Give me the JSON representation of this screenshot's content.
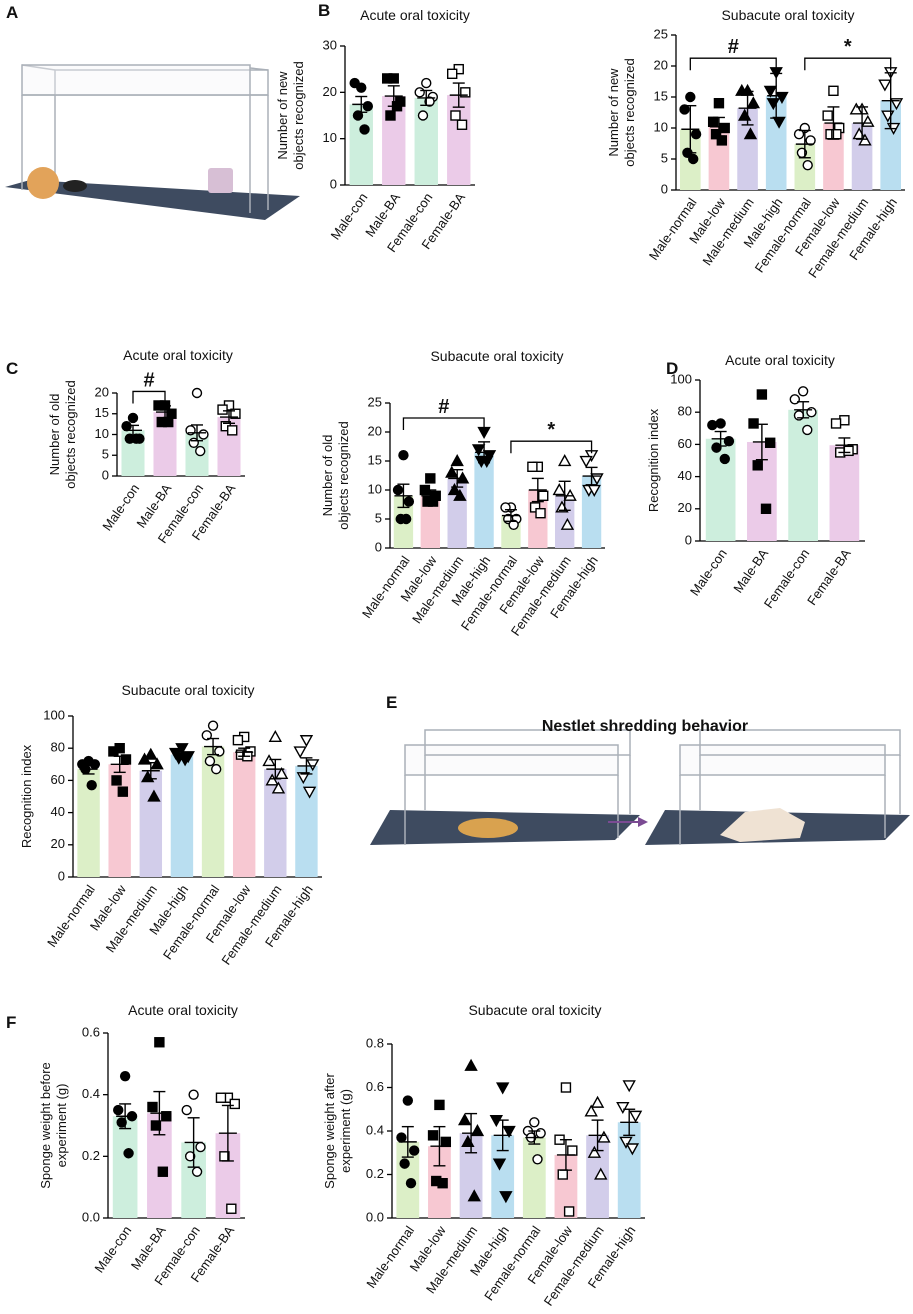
{
  "panel_labels": [
    "A",
    "B",
    "C",
    "D",
    "E",
    "F"
  ],
  "nestlet_title": "Nestlet shredding behavior",
  "chart_data": [
    {
      "type": "bar",
      "title": "Acute oral toxicity",
      "ylabel": [
        "Number of new",
        "objects recognized"
      ],
      "categories": [
        "Male-con",
        "Male-BA",
        "Female-con",
        "Female-BA"
      ],
      "values": [
        17.4,
        19.2,
        18.8,
        19.4
      ],
      "errors": [
        1.7,
        2.2,
        1.6,
        2.6
      ],
      "points": [
        [
          21,
          22,
          17,
          15,
          12
        ],
        [
          23,
          23,
          18,
          15,
          17
        ],
        [
          22,
          20,
          19,
          15,
          18
        ],
        [
          25,
          24,
          20,
          15,
          13
        ]
      ],
      "colors": [
        "#cdeedd",
        "#ebcbe8",
        "#cdeedd",
        "#ebcbe8"
      ],
      "markers": [
        "circle",
        "square",
        "open-circle",
        "open-square"
      ],
      "ylim": [
        0,
        30
      ],
      "yticks": [
        0,
        10,
        20,
        30
      ],
      "brackets": []
    },
    {
      "type": "bar",
      "title": "Subacute oral toxicity",
      "ylabel": [
        "Number of new",
        "objects recognized"
      ],
      "categories": [
        "Male-normal",
        "Male-low",
        "Male-medium",
        "Male-high",
        "Female-normal",
        "Female-low",
        "Female-medium",
        "Female-high"
      ],
      "values": [
        9.8,
        10.2,
        13.2,
        15.2,
        7.4,
        10.8,
        10.8,
        14.4
      ],
      "errors": [
        3.8,
        1.5,
        2.7,
        3.6,
        2.2,
        2.6,
        2.6,
        4.5
      ],
      "points": [
        [
          15,
          13,
          9,
          6,
          5
        ],
        [
          14,
          11,
          10,
          9,
          8
        ],
        [
          16,
          16,
          14,
          12,
          9
        ],
        [
          19,
          16,
          15,
          14,
          11
        ],
        [
          10,
          9,
          8,
          6,
          4
        ],
        [
          16,
          12,
          10,
          9,
          9
        ],
        [
          13,
          13,
          11,
          9,
          8
        ],
        [
          19,
          17,
          14,
          12,
          10
        ]
      ],
      "colors": [
        "#dcefc7",
        "#f7c8d2",
        "#d2cdea",
        "#b9def0",
        "#dcefc7",
        "#f7c8d2",
        "#d2cdea",
        "#b9def0"
      ],
      "markers": [
        "circle",
        "square",
        "triangle",
        "down-triangle",
        "open-circle",
        "open-square",
        "open-triangle",
        "open-down-triangle"
      ],
      "ylim": [
        0,
        25
      ],
      "yticks": [
        0,
        5,
        10,
        15,
        20,
        25
      ],
      "brackets": [
        {
          "label": "#",
          "between": [
            "Male-normal",
            "Male-high"
          ]
        },
        {
          "label": "*",
          "between": [
            "Female-normal",
            "Female-high"
          ]
        }
      ]
    },
    {
      "type": "bar",
      "title": "Acute oral toxicity",
      "ylabel": [
        "Number of old",
        "objects recognized"
      ],
      "categories": [
        "Male-con",
        "Male-BA",
        "Female-con",
        "Female-BA"
      ],
      "values": [
        11,
        15.4,
        10.4,
        14.2
      ],
      "errors": [
        1.2,
        1.5,
        1.9,
        1.5
      ],
      "points": [
        [
          14,
          12,
          9,
          9,
          9
        ],
        [
          17,
          17,
          15,
          13,
          13
        ],
        [
          20,
          11,
          10,
          8,
          6
        ],
        [
          17,
          16,
          15,
          12,
          11
        ]
      ],
      "colors": [
        "#cdeedd",
        "#ebcbe8",
        "#cdeedd",
        "#ebcbe8"
      ],
      "markers": [
        "circle",
        "square",
        "open-circle",
        "open-square"
      ],
      "ylim": [
        0,
        20
      ],
      "yticks": [
        0,
        5,
        10,
        15,
        20
      ],
      "brackets": [
        {
          "label": "#",
          "between": [
            "Male-con",
            "Male-BA"
          ]
        }
      ]
    },
    {
      "type": "bar",
      "title": "Subacute oral toxicity",
      "ylabel": [
        "Number of old",
        "objects recognized"
      ],
      "categories": [
        "Male-normal",
        "Male-low",
        "Male-medium",
        "Male-high",
        "Female-normal",
        "Female-low",
        "Female-medium",
        "Female-high"
      ],
      "values": [
        9,
        9,
        12,
        16.5,
        5.6,
        10,
        9,
        12.4
      ],
      "errors": [
        2,
        1,
        1.5,
        1.8,
        1,
        2,
        2.5,
        1.5
      ],
      "points": [
        [
          16,
          10,
          8,
          5,
          5
        ],
        [
          12,
          10,
          9,
          8,
          8
        ],
        [
          15,
          13,
          12,
          10,
          9
        ],
        [
          20,
          17,
          16,
          15,
          15
        ],
        [
          7,
          7,
          5,
          5,
          4
        ],
        [
          14,
          14,
          9,
          7,
          6
        ],
        [
          15,
          10,
          9,
          7,
          4
        ],
        [
          16,
          15,
          12,
          10,
          10
        ]
      ],
      "colors": [
        "#dcefc7",
        "#f7c8d2",
        "#d2cdea",
        "#b9def0",
        "#dcefc7",
        "#f7c8d2",
        "#d2cdea",
        "#b9def0"
      ],
      "markers": [
        "circle",
        "square",
        "triangle",
        "down-triangle",
        "open-circle",
        "open-square",
        "open-triangle",
        "open-down-triangle"
      ],
      "ylim": [
        0,
        25
      ],
      "yticks": [
        0,
        5,
        10,
        15,
        20,
        25
      ],
      "brackets": [
        {
          "label": "#",
          "between": [
            "Male-normal",
            "Male-high"
          ]
        },
        {
          "label": "*",
          "between": [
            "Female-normal",
            "Female-high"
          ]
        }
      ]
    },
    {
      "type": "bar",
      "title": "Acute oral toxicity",
      "ylabel": [
        "Recognition index"
      ],
      "categories": [
        "Male-con",
        "Male-BA",
        "Female-con",
        "Female-BA"
      ],
      "values": [
        63.5,
        61.5,
        81.5,
        59.5
      ],
      "errors": [
        4.5,
        11,
        5,
        4.5
      ],
      "points": [
        [
          73,
          72,
          62,
          58,
          51
        ],
        [
          91,
          73,
          61,
          47,
          20
        ],
        [
          93,
          88,
          80,
          78,
          69
        ],
        [
          75,
          73,
          57,
          55,
          56
        ]
      ],
      "colors": [
        "#cdeedd",
        "#ebcbe8",
        "#cdeedd",
        "#ebcbe8"
      ],
      "markers": [
        "circle",
        "square",
        "open-circle",
        "open-square"
      ],
      "ylim": [
        0,
        100
      ],
      "yticks": [
        0,
        20,
        40,
        60,
        80,
        100
      ],
      "brackets": []
    },
    {
      "type": "bar",
      "title": "Subacute oral toxicity",
      "ylabel": [
        "Recognition index"
      ],
      "categories": [
        "Male-normal",
        "Male-low",
        "Male-medium",
        "Male-high",
        "Female-normal",
        "Female-low",
        "Female-medium",
        "Female-high"
      ],
      "values": [
        67,
        70,
        66,
        76,
        81,
        77.5,
        67,
        69
      ],
      "errors": [
        3,
        5,
        5,
        1.5,
        5,
        2.5,
        6,
        5
      ],
      "points": [
        [
          72,
          70,
          70,
          67,
          57
        ],
        [
          80,
          78,
          73,
          60,
          53
        ],
        [
          76,
          73,
          70,
          62,
          50
        ],
        [
          80,
          77,
          75,
          74,
          73
        ],
        [
          94,
          88,
          78,
          72,
          67
        ],
        [
          87,
          85,
          78,
          76,
          75
        ],
        [
          87,
          72,
          64,
          60,
          55
        ],
        [
          85,
          78,
          70,
          62,
          53
        ]
      ],
      "colors": [
        "#dcefc7",
        "#f7c8d2",
        "#d2cdea",
        "#b9def0",
        "#dcefc7",
        "#f7c8d2",
        "#d2cdea",
        "#b9def0"
      ],
      "markers": [
        "circle",
        "square",
        "triangle",
        "down-triangle",
        "open-circle",
        "open-square",
        "open-triangle",
        "open-down-triangle"
      ],
      "ylim": [
        0,
        100
      ],
      "yticks": [
        0,
        20,
        40,
        60,
        80,
        100
      ],
      "brackets": []
    },
    {
      "type": "bar",
      "title": "Acute oral toxicity",
      "ylabel": [
        "Sponge weight before",
        "experiment (g)"
      ],
      "categories": [
        "Male-con",
        "Male-BA",
        "Female-con",
        "Female-BA"
      ],
      "values": [
        0.33,
        0.34,
        0.245,
        0.275
      ],
      "errors": [
        0.04,
        0.07,
        0.08,
        0.09
      ],
      "points": [
        [
          0.46,
          0.35,
          0.33,
          0.31,
          0.21
        ],
        [
          0.57,
          0.36,
          0.33,
          0.3,
          0.15
        ],
        [
          0.4,
          0.35,
          0.23,
          0.2,
          0.15
        ],
        [
          0.39,
          0.39,
          0.37,
          0.2,
          0.03
        ]
      ],
      "colors": [
        "#cdeedd",
        "#ebcbe8",
        "#cdeedd",
        "#ebcbe8"
      ],
      "markers": [
        "circle",
        "square",
        "open-circle",
        "open-square"
      ],
      "ylim": [
        0,
        0.6
      ],
      "yticks": [
        {
          "value": 0,
          "label": "0.0"
        },
        0.2,
        0.4,
        0.6
      ],
      "brackets": []
    },
    {
      "type": "bar",
      "title": "Subacute oral toxicity",
      "ylabel": [
        "Sponge weight after",
        "experiment (g)"
      ],
      "categories": [
        "Male-normal",
        "Male-low",
        "Male-medium",
        "Male-high",
        "Female-normal",
        "Female-low",
        "Female-medium",
        "Female-high"
      ],
      "values": [
        0.35,
        0.33,
        0.39,
        0.38,
        0.37,
        0.29,
        0.38,
        0.44
      ],
      "errors": [
        0.07,
        0.09,
        0.09,
        0.07,
        0.03,
        0.07,
        0.07,
        0.06
      ],
      "points": [
        [
          0.54,
          0.37,
          0.31,
          0.25,
          0.16
        ],
        [
          0.52,
          0.38,
          0.35,
          0.17,
          0.16
        ],
        [
          0.7,
          0.45,
          0.4,
          0.35,
          0.1
        ],
        [
          0.6,
          0.45,
          0.4,
          0.25,
          0.1
        ],
        [
          0.44,
          0.4,
          0.39,
          0.37,
          0.27
        ],
        [
          0.6,
          0.36,
          0.31,
          0.2,
          0.03
        ],
        [
          0.53,
          0.49,
          0.37,
          0.3,
          0.2
        ],
        [
          0.61,
          0.51,
          0.47,
          0.35,
          0.32
        ]
      ],
      "colors": [
        "#dcefc7",
        "#f7c8d2",
        "#d2cdea",
        "#b9def0",
        "#dcefc7",
        "#f7c8d2",
        "#d2cdea",
        "#b9def0"
      ],
      "markers": [
        "circle",
        "square",
        "triangle",
        "down-triangle",
        "open-circle",
        "open-square",
        "open-triangle",
        "open-down-triangle"
      ],
      "ylim": [
        0,
        0.8
      ],
      "yticks": [
        {
          "value": 0,
          "label": "0.0"
        },
        0.2,
        0.4,
        0.6,
        0.8
      ],
      "brackets": []
    }
  ]
}
